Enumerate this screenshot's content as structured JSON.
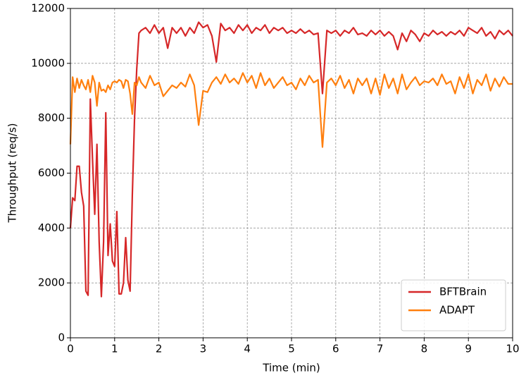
{
  "chart_data": {
    "type": "line",
    "xlabel": "Time (min)",
    "ylabel": "Throughput (req/s)",
    "x": [
      0,
      0.05,
      0.1,
      0.15,
      0.2,
      0.25,
      0.3,
      0.35,
      0.4,
      0.45,
      0.5,
      0.55,
      0.6,
      0.65,
      0.7,
      0.75,
      0.8,
      0.85,
      0.9,
      0.95,
      1.0,
      1.05,
      1.1,
      1.15,
      1.2,
      1.25,
      1.3,
      1.35,
      1.4,
      1.45,
      1.5,
      1.55,
      1.6,
      1.7,
      1.8,
      1.9,
      2.0,
      2.1,
      2.2,
      2.3,
      2.4,
      2.5,
      2.6,
      2.7,
      2.8,
      2.9,
      3.0,
      3.1,
      3.2,
      3.3,
      3.4,
      3.5,
      3.6,
      3.7,
      3.8,
      3.9,
      4.0,
      4.1,
      4.2,
      4.3,
      4.4,
      4.5,
      4.6,
      4.7,
      4.8,
      4.9,
      5.0,
      5.1,
      5.2,
      5.3,
      5.4,
      5.5,
      5.6,
      5.7,
      5.8,
      5.9,
      6.0,
      6.1,
      6.2,
      6.3,
      6.4,
      6.5,
      6.6,
      6.7,
      6.8,
      6.9,
      7.0,
      7.1,
      7.2,
      7.3,
      7.4,
      7.5,
      7.6,
      7.7,
      7.8,
      7.9,
      8.0,
      8.1,
      8.2,
      8.3,
      8.4,
      8.5,
      8.6,
      8.7,
      8.8,
      8.9,
      9.0,
      9.1,
      9.2,
      9.3,
      9.4,
      9.5,
      9.6,
      9.7,
      9.8,
      9.9,
      10.0
    ],
    "series": [
      {
        "name": "BFTBrain",
        "color": "#d62728",
        "values": [
          4000,
          5100,
          5000,
          6250,
          6250,
          5300,
          4800,
          1700,
          1550,
          8700,
          6500,
          4500,
          7050,
          3500,
          1500,
          3500,
          8200,
          3000,
          4150,
          2800,
          2600,
          4600,
          1600,
          1600,
          2000,
          3650,
          2100,
          1700,
          5200,
          8000,
          9800,
          11100,
          11200,
          11300,
          11100,
          11400,
          11100,
          11300,
          10550,
          11300,
          11100,
          11300,
          11000,
          11300,
          11100,
          11500,
          11300,
          11400,
          11000,
          10050,
          11450,
          11200,
          11300,
          11100,
          11400,
          11200,
          11400,
          11100,
          11300,
          11200,
          11400,
          11100,
          11300,
          11200,
          11300,
          11100,
          11200,
          11100,
          11250,
          11100,
          11200,
          11050,
          11100,
          8900,
          11200,
          11100,
          11200,
          11000,
          11200,
          11100,
          11300,
          11050,
          11100,
          11000,
          11200,
          11050,
          11200,
          11000,
          11150,
          11000,
          10500,
          11100,
          10800,
          11200,
          11050,
          10800,
          11100,
          11000,
          11200,
          11050,
          11150,
          11000,
          11150,
          11050,
          11200,
          11000,
          11300,
          11200,
          11100,
          11300,
          11000,
          11150,
          10900,
          11200,
          11050,
          11200,
          11000
        ]
      },
      {
        "name": "ADAPT",
        "color": "#ff7f0e",
        "values": [
          7050,
          9500,
          8950,
          9450,
          9100,
          9400,
          9200,
          9050,
          9400,
          8950,
          9550,
          9300,
          8450,
          9300,
          9000,
          9050,
          8950,
          9200,
          9050,
          9300,
          9350,
          9300,
          9400,
          9350,
          9100,
          9400,
          9350,
          8900,
          8150,
          9300,
          9200,
          9500,
          9300,
          9100,
          9550,
          9200,
          9300,
          8800,
          9000,
          9200,
          9100,
          9300,
          9150,
          9600,
          9200,
          7750,
          9000,
          8950,
          9300,
          9500,
          9250,
          9600,
          9300,
          9450,
          9250,
          9650,
          9300,
          9550,
          9100,
          9650,
          9200,
          9450,
          9100,
          9300,
          9500,
          9200,
          9300,
          9050,
          9450,
          9200,
          9550,
          9300,
          9400,
          6950,
          9300,
          9450,
          9200,
          9550,
          9100,
          9400,
          8900,
          9450,
          9200,
          9450,
          8900,
          9450,
          8850,
          9600,
          9100,
          9450,
          8900,
          9600,
          9050,
          9300,
          9500,
          9200,
          9350,
          9300,
          9450,
          9200,
          9600,
          9250,
          9350,
          8900,
          9500,
          9100,
          9600,
          8900,
          9400,
          9200,
          9600,
          9000,
          9450,
          9150,
          9500,
          9250,
          9250
        ]
      }
    ],
    "xlim": [
      0,
      10
    ],
    "ylim": [
      0,
      12000
    ],
    "xticks": [
      0,
      1,
      2,
      3,
      4,
      5,
      6,
      7,
      8,
      9,
      10
    ],
    "yticks": [
      0,
      2000,
      4000,
      6000,
      8000,
      10000,
      12000
    ],
    "grid": true,
    "legend": "lower right"
  }
}
